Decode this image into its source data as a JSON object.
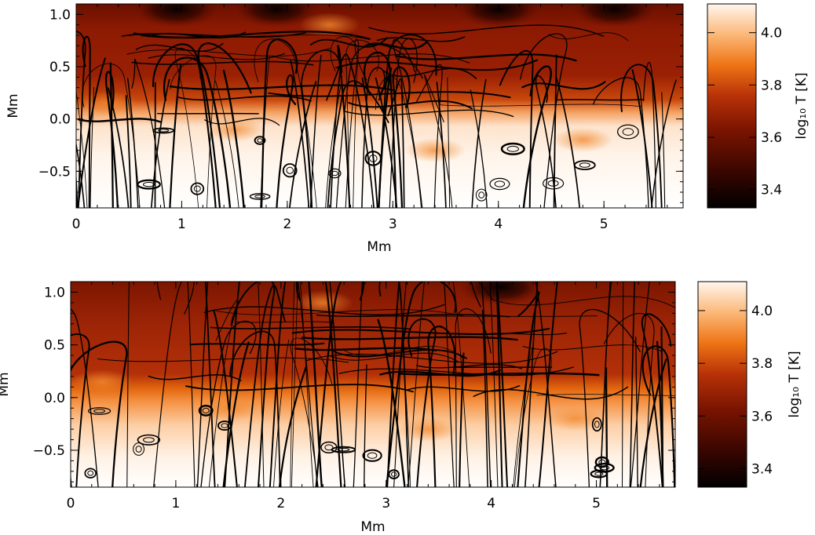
{
  "chart_data": [
    {
      "type": "heatmap",
      "panel": "top",
      "title": "",
      "xlabel": "Mm",
      "ylabel": "Mm",
      "xlim": [
        0,
        5.75
      ],
      "ylim": [
        -0.85,
        1.1
      ],
      "x_ticks": [
        0,
        1,
        2,
        3,
        4,
        5
      ],
      "y_ticks": [
        -0.5,
        0.0,
        0.5,
        1.0
      ],
      "x_tick_labels": [
        "0",
        "1",
        "2",
        "3",
        "4",
        "5"
      ],
      "y_tick_labels": [
        "−0.5",
        "0.0",
        "0.5",
        "1.0"
      ],
      "colorbar": {
        "label": "log₁₀ T [K]",
        "range": [
          3.33,
          4.11
        ],
        "ticks": [
          3.4,
          3.6,
          3.8,
          4.0
        ],
        "tick_labels": [
          "3.4",
          "3.6",
          "3.8",
          "4.0"
        ],
        "colormap": "black-red-orange-white"
      },
      "field_description": {
        "transition_height_mm": 0.05,
        "bottom_log10T": 4.1,
        "upper_log10T": 3.62,
        "cool_pockets_at_top_mm": [
          0.95,
          1.9,
          4.0,
          5.1
        ]
      },
      "overlay": "magnetic field lines"
    },
    {
      "type": "heatmap",
      "panel": "bottom",
      "title": "",
      "xlabel": "Mm",
      "ylabel": "Mm",
      "xlim": [
        0,
        5.75
      ],
      "ylim": [
        -0.85,
        1.1
      ],
      "x_ticks": [
        0,
        1,
        2,
        3,
        4,
        5
      ],
      "y_ticks": [
        -0.5,
        0.0,
        0.5,
        1.0
      ],
      "x_tick_labels": [
        "0",
        "1",
        "2",
        "3",
        "4",
        "5"
      ],
      "y_tick_labels": [
        "−0.5",
        "0.0",
        "0.5",
        "1.0"
      ],
      "colorbar": {
        "label": "log₁₀ T [K]",
        "range": [
          3.33,
          4.11
        ],
        "ticks": [
          3.4,
          3.6,
          3.8,
          4.0
        ],
        "tick_labels": [
          "3.4",
          "3.6",
          "3.8",
          "4.0"
        ],
        "colormap": "black-red-orange-white"
      },
      "field_description": {
        "transition_height_mm": 0.05,
        "bottom_log10T": 4.1,
        "upper_log10T": 3.65,
        "cool_pockets_at_top_mm": [
          4.1
        ]
      },
      "overlay": "magnetic field lines"
    }
  ],
  "colors": {
    "cmap_black": "#000000",
    "cmap_red": "#8a1a00",
    "cmap_orange": "#f07a10",
    "cmap_white": "#ffffff",
    "axis": "#000000"
  }
}
